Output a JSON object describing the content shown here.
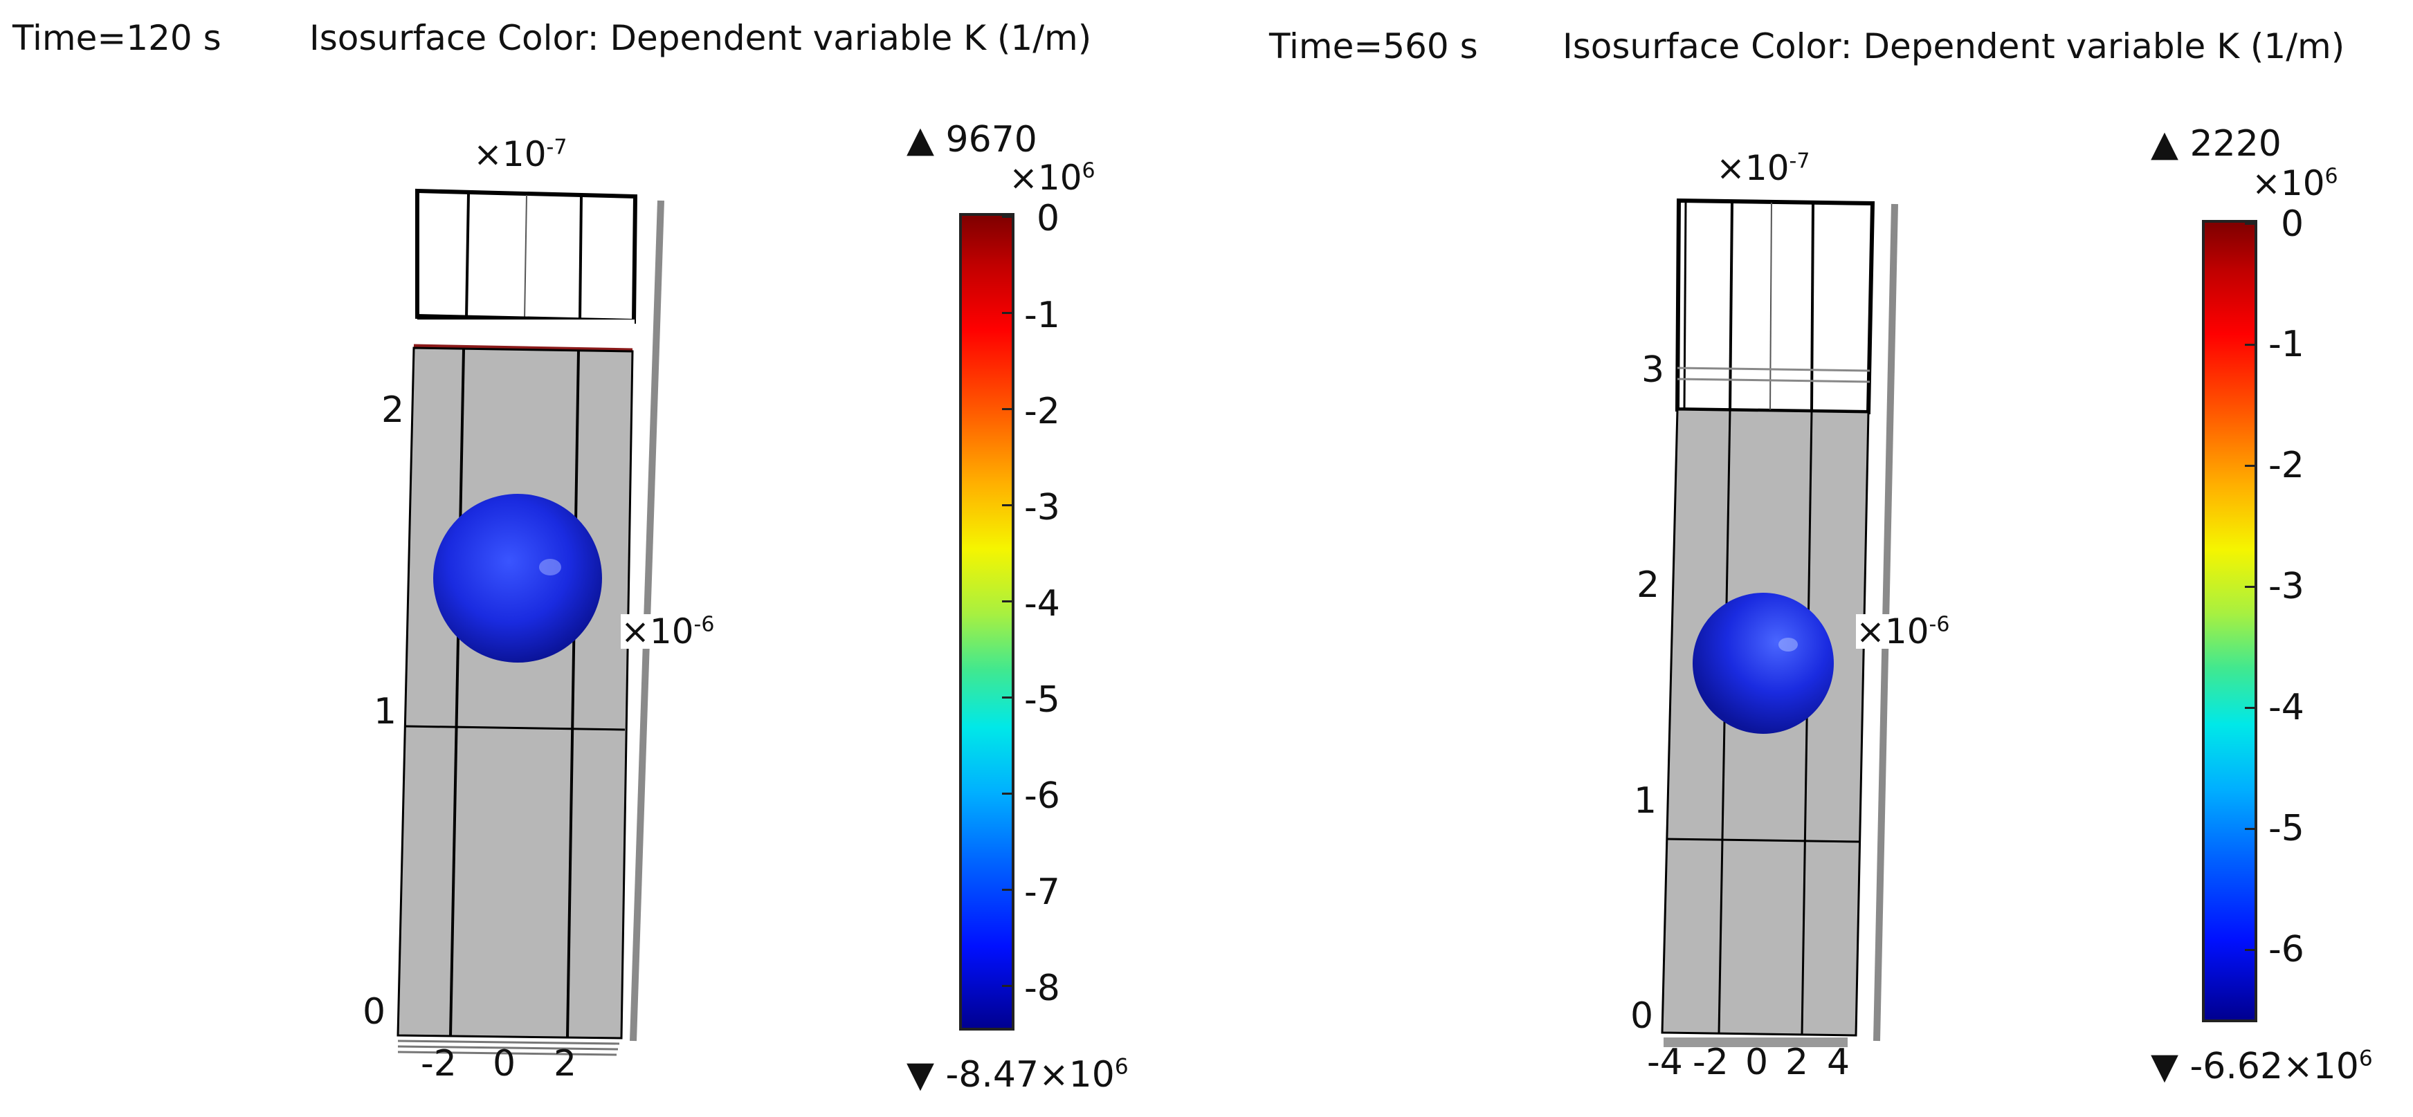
{
  "panels": [
    {
      "time_label": "Time=120 s",
      "title": "Isosurface Color: Dependent variable K (1/m)",
      "axis_scale_top": "×10",
      "axis_scale_top_exp": "-7",
      "axis_scale_side": "×10",
      "axis_scale_side_exp": "-6",
      "y_ticks": [
        "0",
        "1",
        "2"
      ],
      "x_ticks": [
        "-2",
        "0",
        "2"
      ],
      "colorbar": {
        "max_label": "9670",
        "min_label": "-8.47×10",
        "min_label_exp": "6",
        "scale": "×10",
        "scale_exp": "6",
        "ticks": [
          "0",
          "-1",
          "-2",
          "-3",
          "-4",
          "-5",
          "-6",
          "-7",
          "-8"
        ]
      }
    },
    {
      "time_label": "Time=560 s",
      "title": "Isosurface Color: Dependent variable K (1/m)",
      "axis_scale_top": "×10",
      "axis_scale_top_exp": "-7",
      "axis_scale_side": "×10",
      "axis_scale_side_exp": "-6",
      "y_ticks": [
        "0",
        "1",
        "2",
        "3"
      ],
      "x_ticks": [
        "-4",
        "-2",
        "0",
        "2",
        "4"
      ],
      "colorbar": {
        "max_label": "2220",
        "min_label": "-6.62×10",
        "min_label_exp": "6",
        "scale": "×10",
        "scale_exp": "6",
        "ticks": [
          "0",
          "-1",
          "-2",
          "-3",
          "-4",
          "-5",
          "-6"
        ]
      }
    }
  ],
  "colors": {
    "domain_fill": "#b7b7b7",
    "sphere": "#1a2be0",
    "interface_line": "#8b1a1a"
  },
  "icons": {
    "max_marker": "up-triangle-icon",
    "min_marker": "down-triangle-icon"
  }
}
